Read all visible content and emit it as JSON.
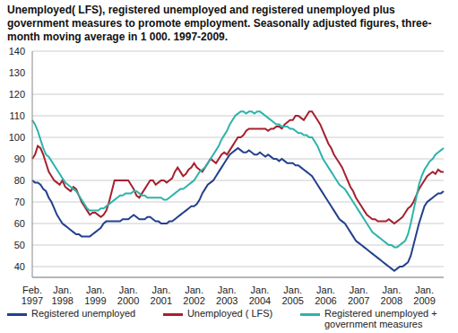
{
  "chart_data": {
    "type": "line",
    "title": "Unemployed( LFS), registered unemployed and registered unemployed plus government measures to promote employment. Seasonally adjusted figures, three-month moving average in 1 000. 1997-2009.",
    "categories": [
      "Feb. 1997",
      null,
      null,
      null,
      null,
      null,
      null,
      null,
      null,
      null,
      null,
      "Jan. 1998",
      null,
      null,
      null,
      null,
      null,
      null,
      null,
      null,
      null,
      null,
      null,
      "Jan. 1999",
      null,
      null,
      null,
      null,
      null,
      null,
      null,
      null,
      null,
      null,
      null,
      "Jan. 2000",
      null,
      null,
      null,
      null,
      null,
      null,
      null,
      null,
      null,
      null,
      null,
      "Jan. 2001",
      null,
      null,
      null,
      null,
      null,
      null,
      null,
      null,
      null,
      null,
      null,
      "Jan. 2002",
      null,
      null,
      null,
      null,
      null,
      null,
      null,
      null,
      null,
      null,
      null,
      "Jan. 2003",
      null,
      null,
      null,
      null,
      null,
      null,
      null,
      null,
      null,
      null,
      null,
      "Jan. 2004",
      null,
      null,
      null,
      null,
      null,
      null,
      null,
      null,
      null,
      null,
      null,
      "Jan. 2005",
      null,
      null,
      null,
      null,
      null,
      null,
      null,
      null,
      null,
      null,
      null,
      "Jan. 2006",
      null,
      null,
      null,
      null,
      null,
      null,
      null,
      null,
      null,
      null,
      null,
      "Jan. 2007",
      null,
      null,
      null,
      null,
      null,
      null,
      null,
      null,
      null,
      null,
      null,
      "Jan. 2008",
      null,
      null,
      null,
      null,
      null,
      null,
      null,
      null,
      null,
      null,
      null,
      "Jan. 2009",
      null,
      null,
      null,
      null,
      null,
      null,
      null
    ],
    "series": [
      {
        "name": "Registered unemployed",
        "color": "#24408e",
        "values": [
          80,
          79,
          79,
          78,
          76,
          75,
          72,
          70,
          67,
          64,
          62,
          60,
          59,
          58,
          57,
          56,
          55,
          55,
          54,
          54,
          54,
          54,
          55,
          56,
          57,
          58,
          60,
          61,
          61,
          61,
          61,
          61,
          61,
          62,
          62,
          62,
          63,
          64,
          63,
          62,
          62,
          62,
          63,
          63,
          62,
          61,
          61,
          60,
          60,
          60,
          61,
          61,
          62,
          63,
          64,
          65,
          66,
          67,
          68,
          68,
          69,
          71,
          74,
          76,
          78,
          79,
          80,
          82,
          84,
          86,
          88,
          90,
          92,
          93,
          94,
          95,
          94,
          93,
          93,
          94,
          93,
          92,
          92,
          93,
          92,
          91,
          92,
          91,
          90,
          90,
          89,
          90,
          89,
          88,
          88,
          88,
          87,
          87,
          86,
          85,
          84,
          83,
          82,
          80,
          78,
          76,
          74,
          72,
          70,
          68,
          66,
          64,
          62,
          61,
          60,
          58,
          56,
          54,
          52,
          51,
          50,
          49,
          48,
          47,
          46,
          45,
          44,
          43,
          42,
          41,
          40,
          39,
          38,
          39,
          40,
          40,
          41,
          42,
          45,
          50,
          55,
          60,
          64,
          68,
          70,
          71,
          72,
          73,
          74,
          74,
          75
        ]
      },
      {
        "name": "Unemployed ( LFS)",
        "color": "#a6202e",
        "values": [
          90,
          92,
          96,
          95,
          92,
          88,
          84,
          82,
          80,
          79,
          78,
          80,
          77,
          76,
          75,
          77,
          76,
          73,
          70,
          68,
          66,
          64,
          65,
          65,
          64,
          63,
          64,
          66,
          70,
          75,
          80,
          80,
          80,
          80,
          80,
          80,
          78,
          76,
          73,
          72,
          74,
          76,
          78,
          80,
          80,
          78,
          79,
          80,
          80,
          79,
          80,
          81,
          84,
          86,
          84,
          82,
          83,
          85,
          86,
          88,
          86,
          85,
          84,
          86,
          88,
          90,
          89,
          88,
          90,
          92,
          93,
          92,
          94,
          96,
          98,
          100,
          100,
          101,
          103,
          104,
          104,
          104,
          104,
          104,
          104,
          104,
          103,
          104,
          104,
          105,
          105,
          104,
          106,
          107,
          108,
          108,
          110,
          110,
          109,
          108,
          110,
          112,
          112,
          110,
          108,
          106,
          103,
          100,
          97,
          95,
          92,
          90,
          88,
          86,
          83,
          80,
          77,
          75,
          72,
          70,
          68,
          66,
          64,
          63,
          62,
          62,
          61,
          61,
          61,
          61,
          62,
          61,
          60,
          61,
          62,
          63,
          65,
          67,
          68,
          70,
          73,
          76,
          78,
          80,
          82,
          83,
          84,
          83,
          85,
          84,
          84
        ]
      },
      {
        "name": "Registered unemployed + government measures",
        "color": "#2db3aa",
        "values": [
          108,
          106,
          103,
          99,
          95,
          92,
          91,
          89,
          87,
          85,
          83,
          81,
          79,
          78,
          77,
          76,
          75,
          73,
          71,
          69,
          67,
          66,
          66,
          66,
          66,
          67,
          67,
          68,
          69,
          70,
          71,
          72,
          73,
          73,
          74,
          74,
          74,
          75,
          75,
          74,
          73,
          73,
          72,
          72,
          72,
          72,
          72,
          72,
          71,
          71,
          72,
          73,
          74,
          75,
          76,
          76,
          77,
          78,
          79,
          80,
          82,
          84,
          85,
          86,
          88,
          90,
          92,
          94,
          96,
          99,
          101,
          103,
          106,
          108,
          110,
          111,
          112,
          112,
          111,
          112,
          112,
          111,
          112,
          112,
          111,
          110,
          109,
          108,
          107,
          106,
          106,
          105,
          105,
          105,
          104,
          104,
          103,
          102,
          102,
          101,
          101,
          100,
          100,
          98,
          96,
          93,
          90,
          88,
          86,
          84,
          82,
          80,
          78,
          77,
          76,
          74,
          72,
          70,
          68,
          66,
          64,
          62,
          60,
          58,
          56,
          55,
          54,
          53,
          52,
          51,
          50,
          50,
          49,
          49,
          50,
          51,
          52,
          55,
          60,
          66,
          72,
          78,
          82,
          85,
          87,
          89,
          90,
          92,
          93,
          94,
          95
        ]
      }
    ],
    "ylim": [
      35,
      140
    ],
    "yticks": [
      40,
      50,
      60,
      70,
      80,
      90,
      100,
      110,
      120,
      130,
      140
    ],
    "grid": true,
    "legend": "bottom"
  }
}
